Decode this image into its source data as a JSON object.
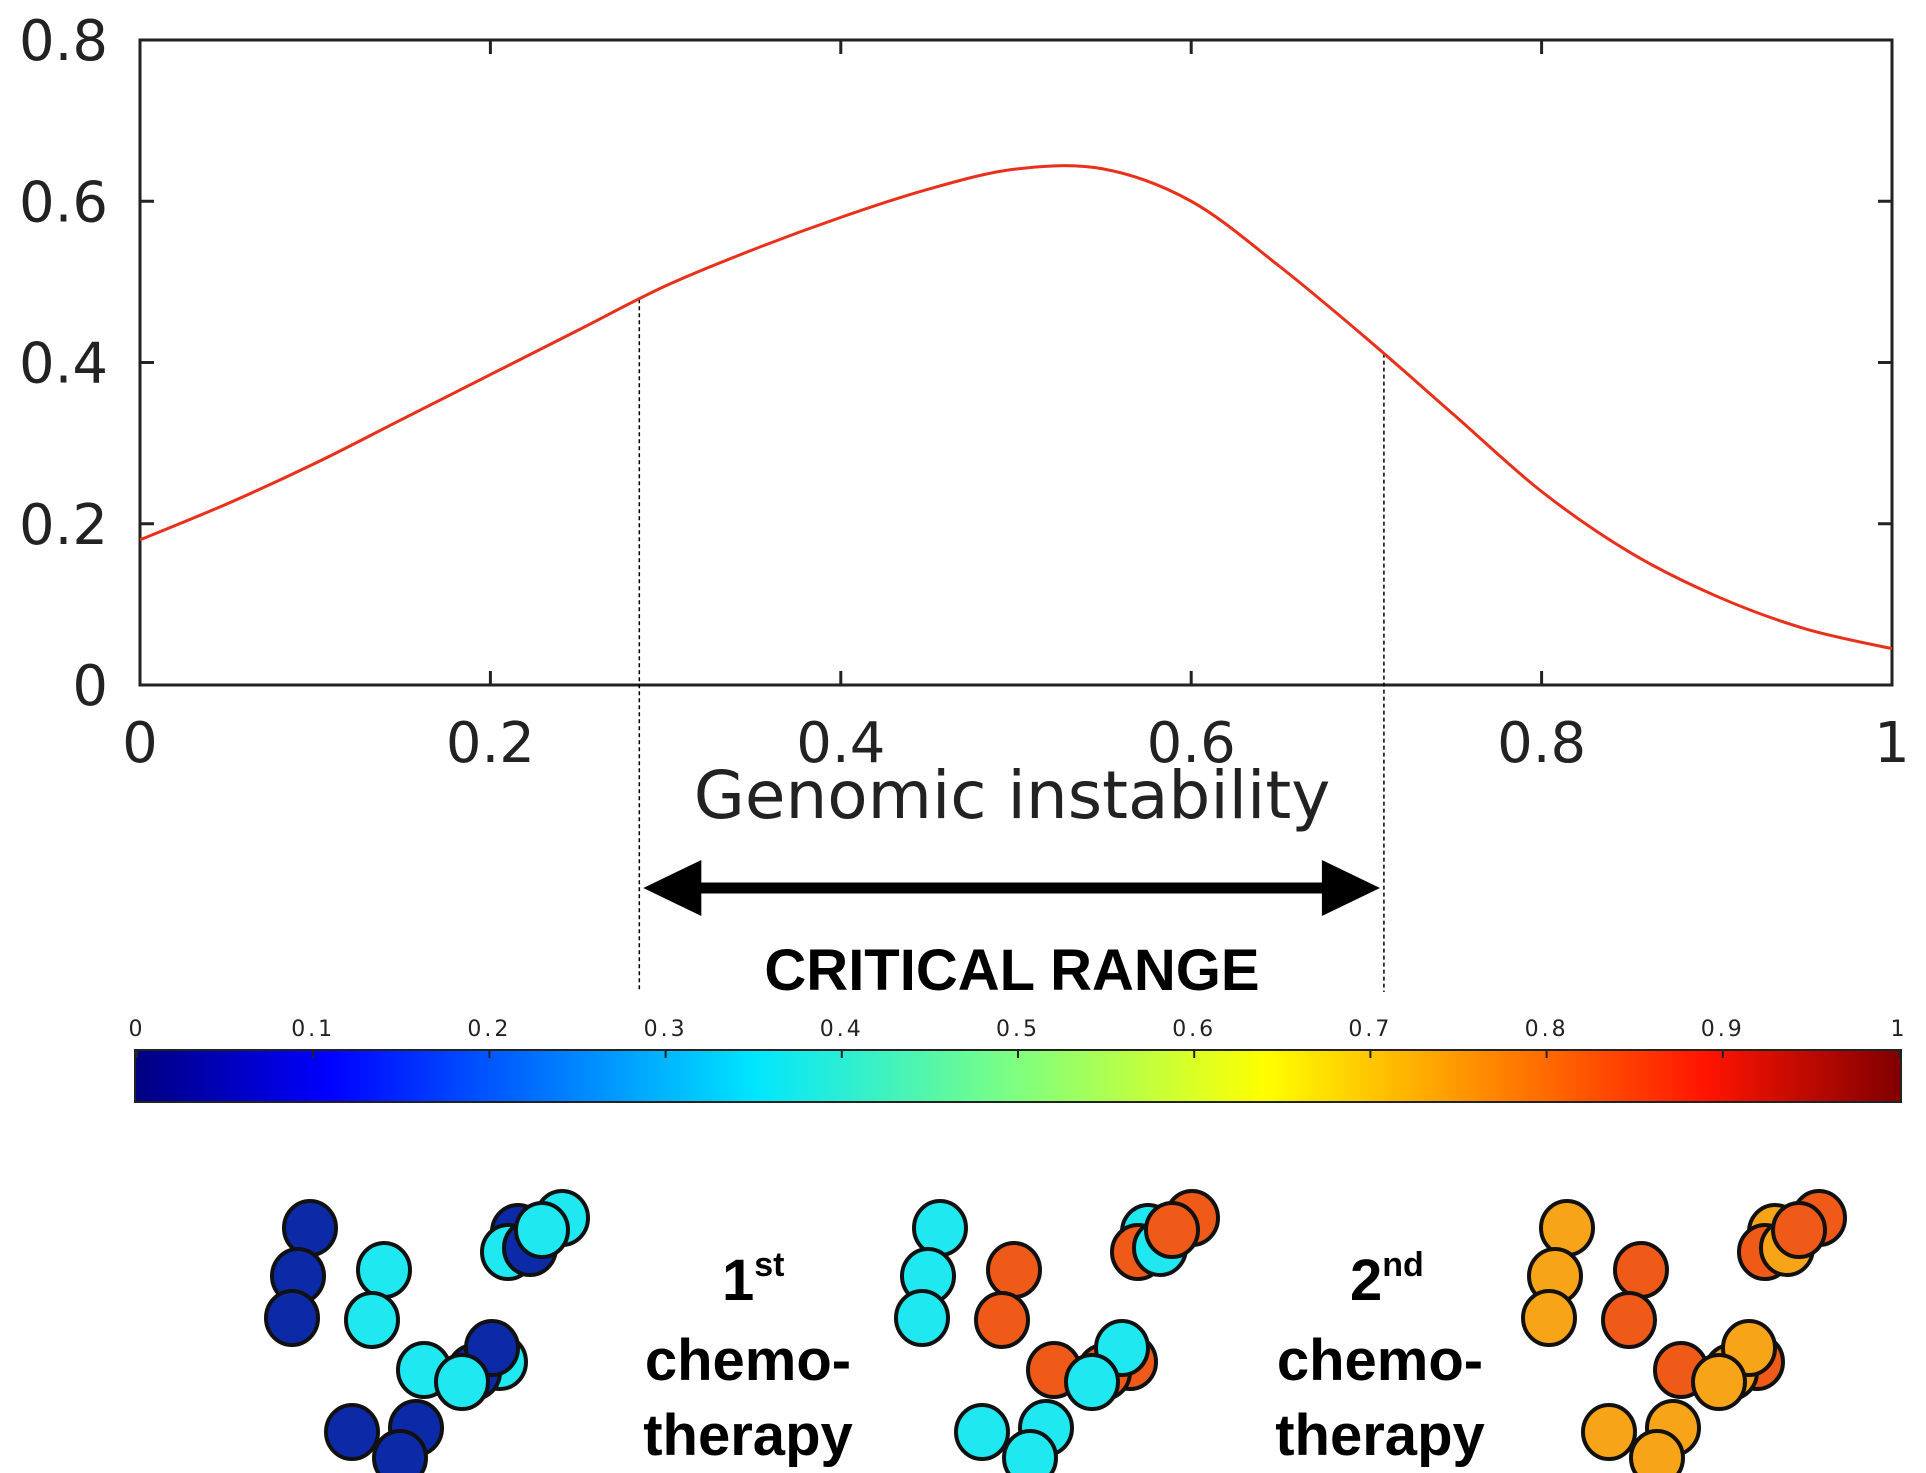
{
  "chart_data": {
    "type": "line",
    "xlabel": "Genomic instability",
    "ylabel": "",
    "xlim": [
      0,
      1
    ],
    "ylim": [
      0,
      0.8
    ],
    "x_ticks": [
      "0",
      "0.2",
      "0.4",
      "0.6",
      "0.8",
      "1"
    ],
    "y_ticks": [
      "0",
      "0.2",
      "0.4",
      "0.6",
      "0.8"
    ],
    "grid": false,
    "series": [
      {
        "color": "#e8301a",
        "x": [
          0,
          0.05,
          0.1,
          0.15,
          0.2,
          0.25,
          0.3,
          0.35,
          0.4,
          0.45,
          0.5,
          0.55,
          0.6,
          0.65,
          0.7,
          0.75,
          0.8,
          0.85,
          0.9,
          0.95,
          1
        ],
        "y": [
          0.18,
          0.225,
          0.275,
          0.33,
          0.385,
          0.44,
          0.495,
          0.54,
          0.58,
          0.615,
          0.64,
          0.64,
          0.6,
          0.52,
          0.43,
          0.335,
          0.24,
          0.165,
          0.11,
          0.07,
          0.045
        ]
      }
    ],
    "critical_range": {
      "start": 0.285,
      "end": 0.71,
      "label": "CRITICAL RANGE"
    }
  },
  "colorbar": {
    "colormap": "jet",
    "range": [
      0,
      1
    ],
    "tick_labels": [
      "0",
      "0.1",
      "0.2",
      "0.3",
      "0.4",
      "0.5",
      "0.6",
      "0.7",
      "0.8",
      "0.9",
      "1"
    ]
  },
  "clusters": {
    "stage1": {
      "dark": "#0c2aa8",
      "light": "#1fe8f0"
    },
    "stage2": {
      "cyan": "#1fe8f0",
      "red": "#f05a18"
    },
    "stage3": {
      "orange": "#f8a418",
      "red": "#f05a18"
    }
  },
  "labels": {
    "first_sup": "st",
    "first_num": "1",
    "second_num": "2",
    "second_sup": "nd",
    "chemo": "chemo-",
    "therapy": "therapy"
  }
}
